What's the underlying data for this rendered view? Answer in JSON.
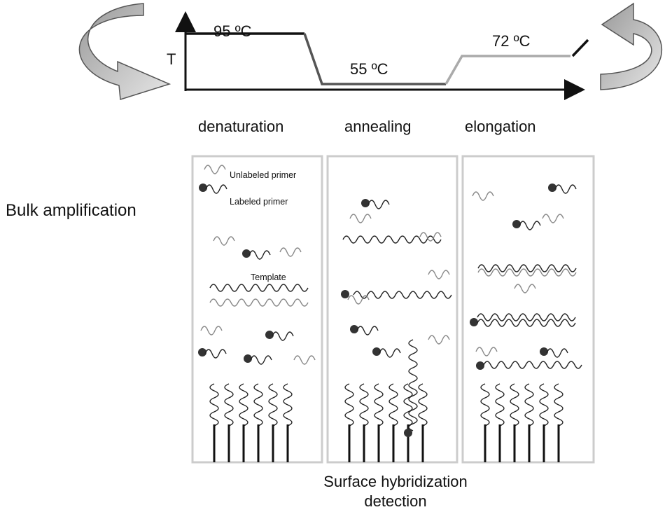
{
  "graph": {
    "axis_label": "T",
    "steps": [
      {
        "temp": "95 ºC",
        "name": "denaturation"
      },
      {
        "temp": "55 ºC",
        "name": "annealing"
      },
      {
        "temp": "72 ºC",
        "name": "elongation"
      }
    ]
  },
  "side_label": "Bulk amplification",
  "legend": {
    "unlabeled": "Unlabeled primer",
    "labeled": "Labeled primer",
    "template": "Template"
  },
  "footer": [
    "Surface hybridization",
    "detection"
  ]
}
